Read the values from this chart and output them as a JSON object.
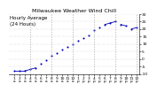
{
  "title": "Milwaukee Weather Wind Chill",
  "subtitle": "Hourly Average",
  "subtitle2": "(24 Hours)",
  "hours": [
    1,
    2,
    3,
    4,
    5,
    6,
    7,
    8,
    9,
    10,
    11,
    12,
    13,
    14,
    15,
    16,
    17,
    18,
    19,
    20,
    21,
    22,
    23,
    24
  ],
  "wind_chill": [
    -8,
    -8,
    -8,
    -7,
    -6,
    -3,
    -1,
    2,
    4,
    6,
    8,
    10,
    12,
    14,
    16,
    19,
    21,
    23,
    24,
    25,
    23,
    22,
    20,
    21
  ],
  "x_labels_top": [
    "1",
    "2",
    "3",
    "4",
    "5",
    "6",
    "7",
    "8",
    "9",
    "10",
    "11",
    "12",
    "1",
    "2",
    "3",
    "4",
    "5",
    "6",
    "7",
    "8",
    "9",
    "10",
    "11",
    "12"
  ],
  "x_labels_bot": [
    "a",
    "a",
    "a",
    "a",
    "a",
    "a",
    "a",
    "a",
    "a",
    "a",
    "a",
    "a",
    "p",
    "p",
    "p",
    "p",
    "p",
    "p",
    "p",
    "p",
    "p",
    "p",
    "p",
    "p"
  ],
  "ylim": [
    -10,
    30
  ],
  "ytick_values": [
    -10,
    -5,
    0,
    5,
    10,
    15,
    20,
    25,
    30
  ],
  "ytick_labels": [
    "-10",
    "-5",
    "0",
    "5",
    "10",
    "15",
    "20",
    "25",
    "30"
  ],
  "vgrid_positions": [
    4,
    8,
    12,
    16,
    20,
    24
  ],
  "line_color": "#0000bb",
  "dot_color": "#0000bb",
  "grid_color": "#aaaaaa",
  "bg_color": "#ffffff",
  "title_color": "#000000",
  "title_fontsize": 4.5,
  "tick_fontsize": 3.2,
  "marker_size": 1.5
}
